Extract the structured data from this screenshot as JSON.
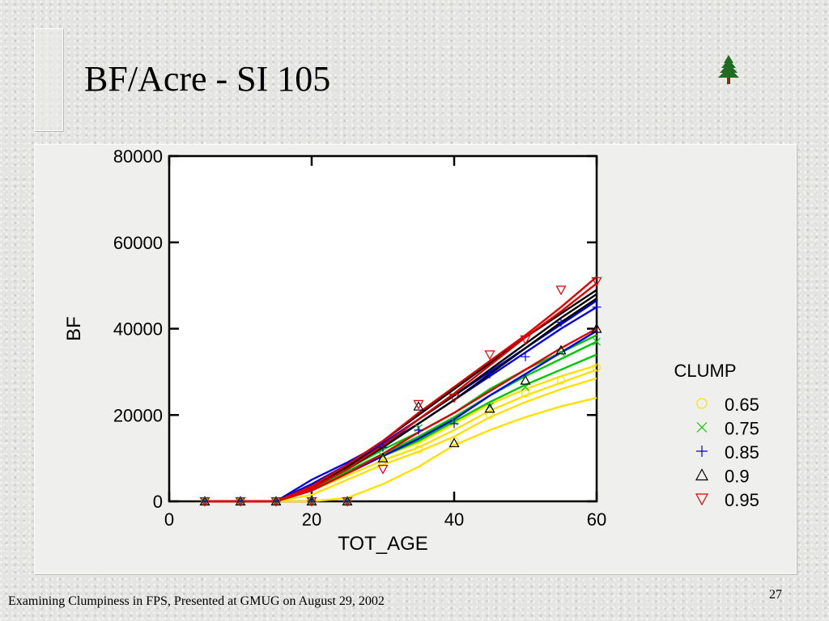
{
  "slide": {
    "title": "BF/Acre - SI 105",
    "footer": "Examining Clumpiness in FPS, Presented at GMUG on August 29, 2002",
    "page_number": "27",
    "logo_icon": "pine-tree-icon"
  },
  "chart_data": {
    "type": "line",
    "xlabel": "TOT_AGE",
    "ylabel": "BF",
    "xlim": [
      0,
      60
    ],
    "ylim": [
      0,
      80000
    ],
    "xticks": [
      0,
      20,
      40,
      60
    ],
    "yticks": [
      0,
      20000,
      40000,
      60000,
      80000
    ],
    "grid": false,
    "legend_title": "CLUMP",
    "legend_position": "right",
    "series": [
      {
        "name": "0.65",
        "color": "#ffe000",
        "marker": "circle",
        "lines": [
          {
            "x": [
              5,
              10,
              15,
              20,
              25,
              30,
              35,
              40,
              45,
              50,
              55,
              60
            ],
            "y": [
              0,
              0,
              0,
              0,
              800,
              4000,
              8000,
              13000,
              16500,
              19500,
              22000,
              24000
            ]
          },
          {
            "x": [
              5,
              10,
              15,
              20,
              25,
              30,
              35,
              40,
              45,
              50,
              55,
              60
            ],
            "y": [
              0,
              0,
              0,
              1500,
              5000,
              8500,
              11500,
              15000,
              19500,
              23000,
              26000,
              28500
            ]
          },
          {
            "x": [
              5,
              10,
              15,
              20,
              25,
              30,
              35,
              40,
              45,
              50,
              55,
              60
            ],
            "y": [
              0,
              0,
              0,
              2500,
              6000,
              9500,
              12500,
              16500,
              21000,
              24500,
              27500,
              30500
            ]
          },
          {
            "x": [
              5,
              10,
              15,
              20,
              25,
              30,
              35,
              40,
              45,
              50,
              55,
              60
            ],
            "y": [
              0,
              0,
              0,
              3000,
              7000,
              10500,
              13500,
              18000,
              22500,
              26000,
              29000,
              31500
            ]
          }
        ],
        "points": {
          "x": [
            5,
            10,
            15,
            20,
            25,
            30,
            35,
            40,
            45,
            50,
            55,
            60
          ],
          "y": [
            0,
            0,
            0,
            0,
            0,
            9000,
            12000,
            14000,
            20000,
            25000,
            28000,
            31000
          ]
        }
      },
      {
        "name": "0.75",
        "color": "#00c800",
        "marker": "x",
        "lines": [
          {
            "x": [
              5,
              10,
              15,
              20,
              25,
              30,
              35,
              40,
              45,
              50,
              55,
              60
            ],
            "y": [
              0,
              0,
              0,
              2500,
              6500,
              10500,
              14000,
              18500,
              23000,
              27000,
              30500,
              34000
            ]
          },
          {
            "x": [
              5,
              10,
              15,
              20,
              25,
              30,
              35,
              40,
              45,
              50,
              55,
              60
            ],
            "y": [
              0,
              0,
              0,
              3000,
              7000,
              11000,
              15000,
              19500,
              24500,
              29000,
              33000,
              37000
            ]
          },
          {
            "x": [
              5,
              10,
              15,
              20,
              25,
              30,
              35,
              40,
              45,
              50,
              55,
              60
            ],
            "y": [
              0,
              0,
              0,
              3500,
              7500,
              12000,
              16000,
              20500,
              26000,
              30500,
              34500,
              38500
            ]
          }
        ],
        "points": {
          "x": [
            5,
            10,
            15,
            20,
            25,
            30,
            35,
            40,
            45,
            50,
            55,
            60
          ],
          "y": [
            0,
            0,
            0,
            0,
            0,
            10500,
            17000,
            18500,
            22000,
            26500,
            34500,
            37000
          ]
        }
      },
      {
        "name": "0.85",
        "color": "#0000e0",
        "marker": "plus",
        "lines": [
          {
            "x": [
              5,
              10,
              15,
              20,
              25,
              30,
              35,
              40,
              45,
              50,
              55,
              60
            ],
            "y": [
              0,
              0,
              0,
              4000,
              8500,
              13000,
              18000,
              23500,
              29000,
              34500,
              40000,
              45000
            ]
          },
          {
            "x": [
              5,
              10,
              15,
              20,
              25,
              30,
              35,
              40,
              45,
              50,
              55,
              60
            ],
            "y": [
              0,
              0,
              0,
              5000,
              9000,
              13500,
              19000,
              24500,
              30000,
              35500,
              41000,
              46500
            ]
          },
          {
            "x": [
              5,
              10,
              15,
              20,
              25,
              30,
              35,
              40,
              45,
              50,
              55,
              60
            ],
            "y": [
              0,
              0,
              0,
              2500,
              6500,
              10500,
              14500,
              19000,
              24500,
              29500,
              34500,
              39500
            ]
          }
        ],
        "points": {
          "x": [
            5,
            10,
            15,
            20,
            25,
            30,
            35,
            40,
            45,
            50,
            55,
            60
          ],
          "y": [
            0,
            0,
            0,
            0,
            0,
            12500,
            16500,
            18000,
            29500,
            33500,
            41500,
            45000
          ]
        }
      },
      {
        "name": "0.9",
        "color": "#000000",
        "marker": "triangle-up",
        "lines": [
          {
            "x": [
              5,
              10,
              15,
              20,
              25,
              30,
              35,
              40,
              45,
              50,
              55,
              60
            ],
            "y": [
              0,
              0,
              0,
              3500,
              8000,
              13000,
              19000,
              24500,
              30500,
              36500,
              42500,
              48000
            ]
          },
          {
            "x": [
              5,
              10,
              15,
              20,
              25,
              30,
              35,
              40,
              45,
              50,
              55,
              60
            ],
            "y": [
              0,
              0,
              0,
              3000,
              7500,
              12500,
              18000,
              23500,
              29500,
              35500,
              41500,
              47000
            ]
          },
          {
            "x": [
              5,
              10,
              15,
              20,
              25,
              30,
              35,
              40,
              45,
              50,
              55,
              60
            ],
            "y": [
              0,
              0,
              0,
              3500,
              8500,
              14000,
              20000,
              26000,
              32000,
              38000,
              43500,
              49000
            ]
          }
        ],
        "points": {
          "x": [
            5,
            10,
            15,
            20,
            25,
            30,
            35,
            40,
            45,
            50,
            55,
            60
          ],
          "y": [
            0,
            0,
            0,
            0,
            0,
            10000,
            22000,
            13500,
            21500,
            28000,
            35000,
            40000
          ]
        }
      },
      {
        "name": "0.95",
        "color": "#e00000",
        "marker": "triangle-down",
        "lines": [
          {
            "x": [
              5,
              10,
              15,
              20,
              25,
              30,
              35,
              40,
              45,
              50,
              55,
              60
            ],
            "y": [
              0,
              0,
              0,
              3500,
              8500,
              14000,
              20500,
              26500,
              32500,
              38500,
              45000,
              52000
            ]
          },
          {
            "x": [
              5,
              10,
              15,
              20,
              25,
              30,
              35,
              40,
              45,
              50,
              55,
              60
            ],
            "y": [
              0,
              0,
              0,
              2500,
              6500,
              11000,
              16000,
              20500,
              25500,
              30500,
              35500,
              40000
            ]
          },
          {
            "x": [
              5,
              10,
              15,
              20,
              25,
              30,
              35,
              40,
              45,
              50,
              55,
              60
            ],
            "y": [
              0,
              0,
              0,
              3000,
              7500,
              13000,
              19000,
              25000,
              31500,
              38000,
              44000,
              50500
            ]
          }
        ],
        "points": {
          "x": [
            5,
            10,
            15,
            20,
            25,
            30,
            35,
            40,
            45,
            50,
            55,
            60
          ],
          "y": [
            0,
            0,
            0,
            0,
            0,
            7500,
            22500,
            24000,
            34000,
            37500,
            49000,
            51000
          ]
        }
      }
    ]
  }
}
